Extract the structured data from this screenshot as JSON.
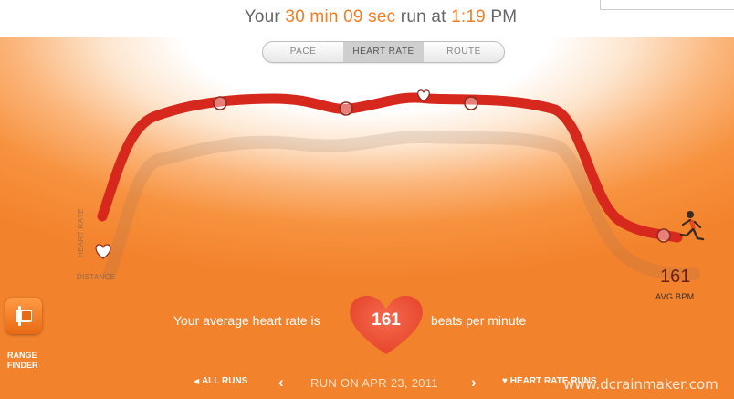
{
  "header": {
    "prefix": "Your",
    "duration": "30 min 09 sec",
    "mid": "run at",
    "time": "1:19",
    "suffix": "PM"
  },
  "tabs": [
    {
      "label": "PACE",
      "active": false
    },
    {
      "label": "HEART RATE",
      "active": true
    },
    {
      "label": "ROUTE",
      "active": false
    }
  ],
  "chart": {
    "y_axis_label": "HEART RATE",
    "x_axis_label": "DISTANCE",
    "avg_bpm_value": "161",
    "avg_bpm_label": "AVG BPM",
    "line_color": "#d7281d"
  },
  "summary": {
    "before": "Your average heart rate is",
    "value": "161",
    "after": "beats per minute"
  },
  "sidebar": {
    "range_finder_line1": "RANGE",
    "range_finder_line2": "FINDER"
  },
  "footer": {
    "all_runs": "ALL RUNS",
    "run_date": "RUN ON APR 23, 2011",
    "heart_rate_runs": "HEART RATE RUNS",
    "watermark": "www.dcrainmaker.com"
  },
  "colors": {
    "accent": "#f47c20",
    "heart": "#ef4b3a"
  }
}
